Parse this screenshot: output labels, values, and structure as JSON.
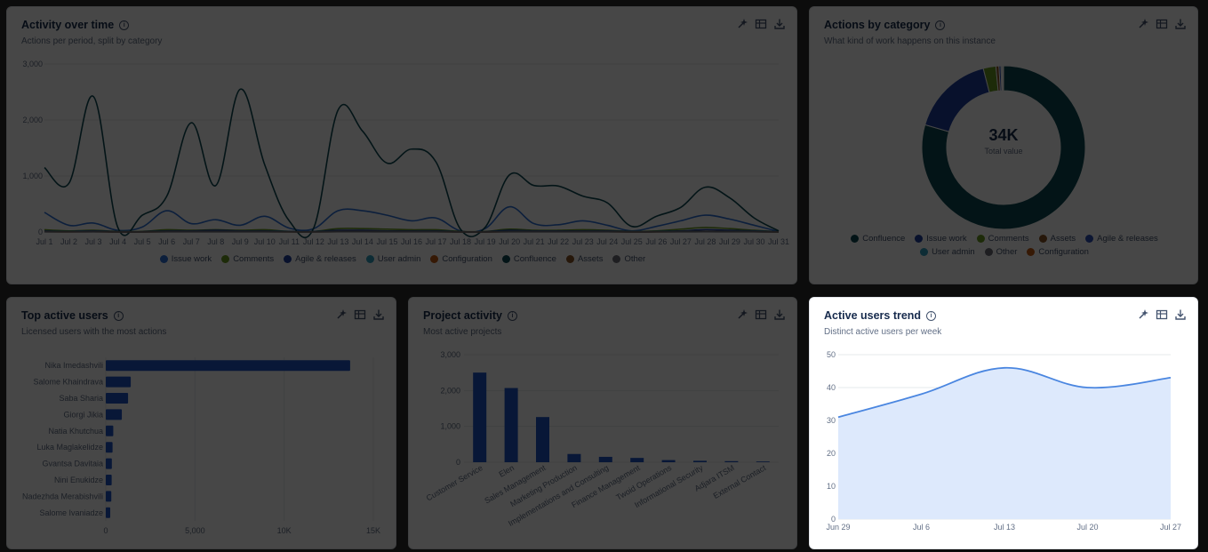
{
  "tools": {
    "icons": [
      "sparkle-icon",
      "table-icon",
      "download-icon"
    ]
  },
  "activity_card": {
    "title": "Activity over time",
    "subtitle": "Actions per period, split by category"
  },
  "category_card": {
    "title": "Actions by category",
    "subtitle": "What kind of work happens on this instance",
    "center_value": "34K",
    "center_label": "Total value"
  },
  "top_users_card": {
    "title": "Top active users",
    "subtitle": "Licensed users with the most actions"
  },
  "project_card": {
    "title": "Project activity",
    "subtitle": "Most active projects"
  },
  "trend_card": {
    "title": "Active users trend",
    "subtitle": "Distinct active users per week"
  },
  "chart_data": [
    {
      "id": "activity",
      "type": "line",
      "x": [
        "Jul 1",
        "Jul 2",
        "Jul 3",
        "Jul 4",
        "Jul 5",
        "Jul 6",
        "Jul 7",
        "Jul 8",
        "Jul 9",
        "Jul 10",
        "Jul 11",
        "Jul 12",
        "Jul 13",
        "Jul 14",
        "Jul 15",
        "Jul 16",
        "Jul 17",
        "Jul 18",
        "Jul 19",
        "Jul 20",
        "Jul 21",
        "Jul 22",
        "Jul 23",
        "Jul 24",
        "Jul 25",
        "Jul 26",
        "Jul 27",
        "Jul 28",
        "Jul 29",
        "Jul 30",
        "Jul 31"
      ],
      "yticks": [
        "0",
        "1,000",
        "2,000",
        "3,000"
      ],
      "ylim": [
        0,
        3000
      ],
      "grid": true,
      "legend_position": "bottom",
      "series": [
        {
          "name": "Issue work",
          "color": "#2d6fd6",
          "values": [
            350,
            120,
            160,
            30,
            90,
            380,
            150,
            220,
            120,
            280,
            70,
            60,
            380,
            380,
            300,
            200,
            250,
            20,
            60,
            450,
            150,
            130,
            200,
            120,
            20,
            100,
            200,
            300,
            230,
            120,
            10
          ]
        },
        {
          "name": "Comments",
          "color": "#6a9a23",
          "values": [
            40,
            20,
            30,
            10,
            10,
            40,
            30,
            40,
            30,
            40,
            10,
            10,
            60,
            60,
            50,
            40,
            40,
            10,
            10,
            50,
            30,
            30,
            40,
            30,
            10,
            20,
            50,
            80,
            60,
            30,
            5
          ]
        },
        {
          "name": "Agile & releases",
          "color": "#1d3f9e",
          "values": [
            20,
            10,
            20,
            5,
            5,
            20,
            20,
            30,
            20,
            20,
            10,
            10,
            30,
            30,
            20,
            20,
            20,
            5,
            5,
            30,
            20,
            20,
            20,
            20,
            5,
            10,
            20,
            40,
            30,
            20,
            5
          ]
        },
        {
          "name": "User admin",
          "color": "#2f9fbd",
          "values": [
            10,
            5,
            10,
            2,
            2,
            10,
            10,
            10,
            10,
            10,
            5,
            5,
            10,
            10,
            10,
            10,
            10,
            2,
            2,
            10,
            10,
            10,
            10,
            10,
            2,
            5,
            10,
            10,
            10,
            10,
            2
          ]
        },
        {
          "name": "Configuration",
          "color": "#c25a13",
          "values": [
            5,
            2,
            5,
            1,
            1,
            5,
            5,
            5,
            5,
            5,
            2,
            2,
            5,
            5,
            5,
            5,
            5,
            1,
            1,
            5,
            5,
            5,
            5,
            5,
            1,
            2,
            5,
            5,
            5,
            5,
            1
          ]
        },
        {
          "name": "Confluence",
          "color": "#0e4a52",
          "values": [
            1150,
            870,
            2420,
            80,
            300,
            640,
            1950,
            830,
            2550,
            1200,
            200,
            70,
            2180,
            1800,
            1230,
            1480,
            1250,
            50,
            80,
            1020,
            830,
            820,
            640,
            520,
            100,
            280,
            440,
            800,
            610,
            250,
            20
          ]
        },
        {
          "name": "Assets",
          "color": "#8a5524",
          "values": [
            5,
            3,
            5,
            1,
            2,
            5,
            5,
            5,
            5,
            5,
            3,
            2,
            8,
            8,
            6,
            5,
            5,
            1,
            1,
            6,
            5,
            5,
            5,
            5,
            1,
            3,
            5,
            8,
            6,
            4,
            1
          ]
        },
        {
          "name": "Other",
          "color": "#6b6e76",
          "values": [
            3,
            2,
            3,
            1,
            1,
            3,
            3,
            3,
            3,
            3,
            2,
            1,
            4,
            4,
            3,
            3,
            3,
            1,
            1,
            3,
            3,
            3,
            3,
            3,
            1,
            2,
            3,
            4,
            3,
            2,
            1
          ]
        }
      ]
    },
    {
      "id": "category",
      "type": "pie",
      "donut": true,
      "labels": [
        "Confluence",
        "Issue work",
        "Comments",
        "Assets",
        "Agile & releases",
        "User admin",
        "Other",
        "Configuration"
      ],
      "values": [
        79.5,
        16.5,
        2.5,
        0.6,
        0.4,
        0.2,
        0.2,
        0.1
      ],
      "colors": [
        "#0e4a52",
        "#1d3f9e",
        "#6a9a23",
        "#8a5524",
        "#2d4fb8",
        "#2f9fbd",
        "#6b6e76",
        "#c25a13"
      ],
      "legend_position": "bottom"
    },
    {
      "id": "top_users",
      "type": "bar",
      "orientation": "horizontal",
      "categories": [
        "Nika Imedashvili",
        "Salome Khaindrava",
        "Saba Sharia",
        "Giorgi Jikia",
        "Natia Khutchua",
        "Luka Maglakelidze",
        "Gvantsa Davitaia",
        "Nini Enukidze",
        "Nadezhda Merabishvili",
        "Salome Ivaniadze"
      ],
      "values": [
        13700,
        1400,
        1250,
        900,
        420,
        380,
        340,
        330,
        310,
        250
      ],
      "xticks": [
        "0",
        "5,000",
        "10K",
        "15K"
      ],
      "xlim": [
        0,
        15000
      ],
      "color": "#1d55c4"
    },
    {
      "id": "projects",
      "type": "bar",
      "categories": [
        "Customer Service",
        "Elen",
        "Sales Management",
        "Marketing Production",
        "Implementations and Consulting",
        "Finance Management",
        "Twoid Operations",
        "Informational Security",
        "Adjara ITSM",
        "External Contact"
      ],
      "values": [
        2500,
        2070,
        1260,
        230,
        150,
        120,
        60,
        40,
        30,
        20
      ],
      "yticks": [
        "0",
        "1,000",
        "2,000",
        "3,000"
      ],
      "ylim": [
        0,
        3000
      ],
      "color": "#1d55c4"
    },
    {
      "id": "trend",
      "type": "area",
      "x": [
        "Jun 29",
        "Jul 6",
        "Jul 13",
        "Jul 20",
        "Jul 27"
      ],
      "values": [
        31,
        38,
        46,
        40,
        43
      ],
      "yticks": [
        "0",
        "10",
        "20",
        "30",
        "40",
        "50"
      ],
      "ylim": [
        0,
        50
      ],
      "line_color": "#4a86e0",
      "fill_color": "#dde9fc"
    }
  ]
}
